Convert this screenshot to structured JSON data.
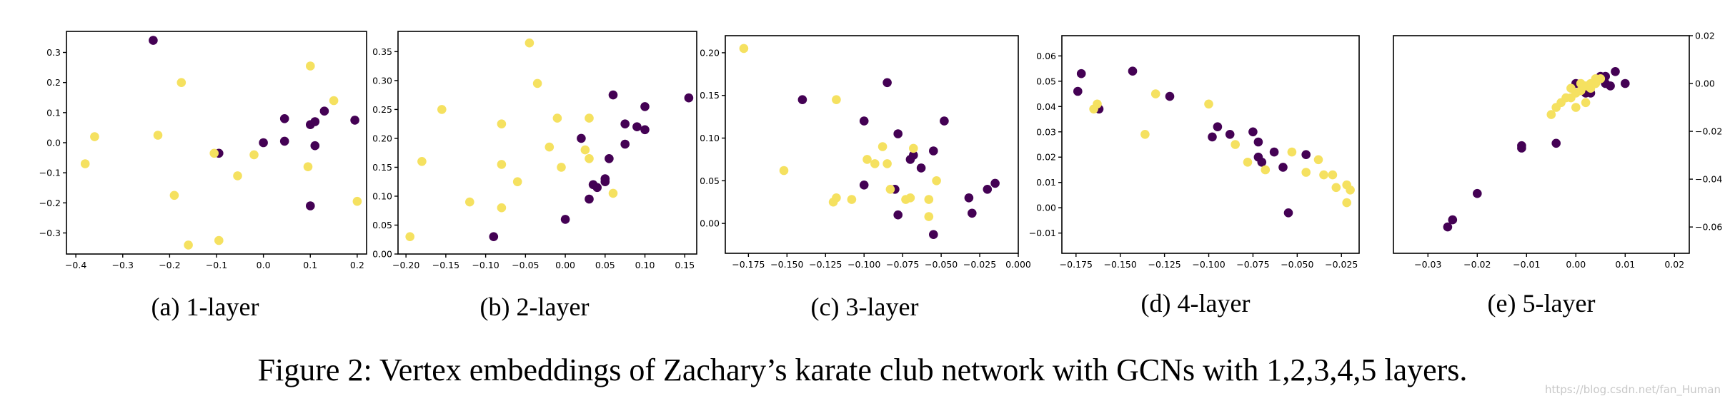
{
  "figure_caption": "Figure 2: Vertex embeddings of Zachary’s karate club network with GCNs with 1,2,3,4,5 layers.",
  "watermark": "https://blog.csdn.net/fan_Human",
  "colors": {
    "class_a": "#440154",
    "class_b": "#f5e160"
  },
  "chart_data": [
    {
      "type": "scatter",
      "caption": "(a) 1-layer",
      "xlim": [
        -0.42,
        0.22
      ],
      "ylim": [
        -0.37,
        0.37
      ],
      "xticks": [
        -0.4,
        -0.3,
        -0.2,
        -0.1,
        0.0,
        0.1,
        0.2
      ],
      "xtick_labels": [
        "−0.4",
        "−0.3",
        "−0.2",
        "−0.1",
        "0.0",
        "0.1",
        "0.2"
      ],
      "yticks": [
        -0.3,
        -0.2,
        -0.1,
        0.0,
        0.1,
        0.2,
        0.3
      ],
      "ytick_labels": [
        "−0.3",
        "−0.2",
        "−0.1",
        "0.0",
        "0.1",
        "0.2",
        "0.3"
      ],
      "yaxis_side": "left",
      "series": [
        {
          "color": "#440154",
          "points": [
            [
              -0.235,
              0.34
            ],
            [
              -0.095,
              -0.035
            ],
            [
              0.0,
              0.0
            ],
            [
              0.045,
              0.08
            ],
            [
              0.045,
              0.005
            ],
            [
              0.1,
              0.06
            ],
            [
              0.11,
              0.07
            ],
            [
              0.13,
              0.105
            ],
            [
              0.11,
              -0.01
            ],
            [
              0.195,
              0.075
            ],
            [
              0.1,
              -0.21
            ]
          ]
        },
        {
          "color": "#f5e160",
          "points": [
            [
              -0.38,
              -0.07
            ],
            [
              -0.36,
              0.02
            ],
            [
              -0.225,
              0.025
            ],
            [
              -0.175,
              0.2
            ],
            [
              -0.19,
              -0.175
            ],
            [
              -0.16,
              -0.34
            ],
            [
              -0.105,
              -0.035
            ],
            [
              -0.095,
              -0.325
            ],
            [
              -0.055,
              -0.11
            ],
            [
              -0.02,
              -0.04
            ],
            [
              0.095,
              -0.08
            ],
            [
              0.1,
              0.255
            ],
            [
              0.15,
              0.14
            ],
            [
              0.2,
              -0.195
            ]
          ]
        }
      ]
    },
    {
      "type": "scatter",
      "caption": "(b) 2-layer",
      "xlim": [
        -0.21,
        0.165
      ],
      "ylim": [
        0.0,
        0.385
      ],
      "xticks": [
        -0.2,
        -0.15,
        -0.1,
        -0.05,
        0.0,
        0.05,
        0.1,
        0.15
      ],
      "xtick_labels": [
        "−0.20",
        "−0.15",
        "−0.10",
        "−0.05",
        "0.00",
        "0.05",
        "0.10",
        "0.15"
      ],
      "yticks": [
        0.0,
        0.05,
        0.1,
        0.15,
        0.2,
        0.25,
        0.3,
        0.35
      ],
      "ytick_labels": [
        "0.00",
        "0.05",
        "0.10",
        "0.15",
        "0.20",
        "0.25",
        "0.30",
        "0.35"
      ],
      "yaxis_side": "left",
      "series": [
        {
          "color": "#440154",
          "points": [
            [
              -0.09,
              0.03
            ],
            [
              0.0,
              0.06
            ],
            [
              0.02,
              0.2
            ],
            [
              0.03,
              0.095
            ],
            [
              0.035,
              0.12
            ],
            [
              0.04,
              0.115
            ],
            [
              0.05,
              0.13
            ],
            [
              0.05,
              0.125
            ],
            [
              0.06,
              0.275
            ],
            [
              0.075,
              0.19
            ],
            [
              0.075,
              0.225
            ],
            [
              0.09,
              0.22
            ],
            [
              0.1,
              0.215
            ],
            [
              0.1,
              0.255
            ],
            [
              0.155,
              0.27
            ],
            [
              0.055,
              0.165
            ]
          ]
        },
        {
          "color": "#f5e160",
          "points": [
            [
              -0.195,
              0.03
            ],
            [
              -0.18,
              0.16
            ],
            [
              -0.155,
              0.25
            ],
            [
              -0.12,
              0.09
            ],
            [
              -0.08,
              0.225
            ],
            [
              -0.08,
              0.155
            ],
            [
              -0.08,
              0.08
            ],
            [
              -0.06,
              0.125
            ],
            [
              -0.045,
              0.365
            ],
            [
              -0.035,
              0.295
            ],
            [
              -0.02,
              0.185
            ],
            [
              -0.01,
              0.235
            ],
            [
              -0.005,
              0.15
            ],
            [
              0.025,
              0.18
            ],
            [
              0.03,
              0.235
            ],
            [
              0.03,
              0.165
            ],
            [
              0.06,
              0.105
            ]
          ]
        }
      ]
    },
    {
      "type": "scatter",
      "caption": "(c) 3-layer",
      "xlim": [
        -0.19,
        0.0
      ],
      "ylim": [
        -0.035,
        0.22
      ],
      "xticks": [
        -0.175,
        -0.15,
        -0.125,
        -0.1,
        -0.075,
        -0.05,
        -0.025,
        0.0
      ],
      "xtick_labels": [
        "−0.175",
        "−0.150",
        "−0.125",
        "−0.100",
        "−0.075",
        "−0.050",
        "−0.025",
        "0.000"
      ],
      "yticks": [
        0.0,
        0.05,
        0.1,
        0.15,
        0.2
      ],
      "ytick_labels": [
        "0.00",
        "0.05",
        "0.10",
        "0.15",
        "0.20"
      ],
      "yaxis_side": "left",
      "series": [
        {
          "color": "#440154",
          "points": [
            [
              -0.14,
              0.145
            ],
            [
              -0.1,
              0.12
            ],
            [
              -0.085,
              0.165
            ],
            [
              -0.08,
              0.04
            ],
            [
              -0.078,
              0.01
            ],
            [
              -0.078,
              0.105
            ],
            [
              -0.07,
              0.075
            ],
            [
              -0.068,
              0.08
            ],
            [
              -0.063,
              0.065
            ],
            [
              -0.055,
              0.085
            ],
            [
              -0.055,
              -0.013
            ],
            [
              -0.048,
              0.12
            ],
            [
              -0.032,
              0.03
            ],
            [
              -0.03,
              0.012
            ],
            [
              -0.02,
              0.04
            ],
            [
              -0.015,
              0.047
            ],
            [
              -0.1,
              0.045
            ]
          ]
        },
        {
          "color": "#f5e160",
          "points": [
            [
              -0.178,
              0.205
            ],
            [
              -0.152,
              0.062
            ],
            [
              -0.12,
              0.025
            ],
            [
              -0.118,
              0.03
            ],
            [
              -0.118,
              0.145
            ],
            [
              -0.108,
              0.028
            ],
            [
              -0.098,
              0.075
            ],
            [
              -0.093,
              0.07
            ],
            [
              -0.088,
              0.09
            ],
            [
              -0.085,
              0.07
            ],
            [
              -0.083,
              0.04
            ],
            [
              -0.073,
              0.028
            ],
            [
              -0.07,
              0.03
            ],
            [
              -0.068,
              0.088
            ],
            [
              -0.058,
              0.028
            ],
            [
              -0.058,
              0.008
            ],
            [
              -0.053,
              0.05
            ]
          ]
        }
      ]
    },
    {
      "type": "scatter",
      "caption": "(d) 4-layer",
      "xlim": [
        -0.183,
        -0.015
      ],
      "ylim": [
        -0.018,
        0.068
      ],
      "xticks": [
        -0.175,
        -0.15,
        -0.125,
        -0.1,
        -0.075,
        -0.05,
        -0.025
      ],
      "xtick_labels": [
        "−0.175",
        "−0.150",
        "−0.125",
        "−0.100",
        "−0.075",
        "−0.050",
        "−0.025"
      ],
      "yticks": [
        -0.01,
        0.0,
        0.01,
        0.02,
        0.03,
        0.04,
        0.05,
        0.06
      ],
      "ytick_labels": [
        "−0.01",
        "0.00",
        "0.01",
        "0.02",
        "0.03",
        "0.04",
        "0.05",
        "0.06"
      ],
      "yaxis_side": "left",
      "series": [
        {
          "color": "#440154",
          "points": [
            [
              -0.174,
              0.046
            ],
            [
              -0.172,
              0.053
            ],
            [
              -0.162,
              0.039
            ],
            [
              -0.143,
              0.054
            ],
            [
              -0.122,
              0.044
            ],
            [
              -0.098,
              0.028
            ],
            [
              -0.095,
              0.032
            ],
            [
              -0.088,
              0.029
            ],
            [
              -0.075,
              0.03
            ],
            [
              -0.072,
              0.026
            ],
            [
              -0.072,
              0.02
            ],
            [
              -0.07,
              0.018
            ],
            [
              -0.063,
              0.022
            ],
            [
              -0.058,
              0.016
            ],
            [
              -0.055,
              -0.002
            ],
            [
              -0.045,
              0.021
            ]
          ]
        },
        {
          "color": "#f5e160",
          "points": [
            [
              -0.165,
              0.039
            ],
            [
              -0.163,
              0.041
            ],
            [
              -0.136,
              0.029
            ],
            [
              -0.13,
              0.045
            ],
            [
              -0.1,
              0.041
            ],
            [
              -0.085,
              0.025
            ],
            [
              -0.078,
              0.018
            ],
            [
              -0.068,
              0.015
            ],
            [
              -0.053,
              0.022
            ],
            [
              -0.045,
              0.014
            ],
            [
              -0.038,
              0.019
            ],
            [
              -0.035,
              0.013
            ],
            [
              -0.03,
              0.013
            ],
            [
              -0.028,
              0.008
            ],
            [
              -0.022,
              0.009
            ],
            [
              -0.022,
              0.002
            ],
            [
              -0.02,
              0.007
            ]
          ]
        }
      ]
    },
    {
      "type": "scatter",
      "caption": "(e) 5-layer",
      "xlim": [
        -0.037,
        0.023
      ],
      "ylim": [
        -0.071,
        0.02
      ],
      "xticks": [
        -0.03,
        -0.02,
        -0.01,
        0.0,
        0.01,
        0.02
      ],
      "xtick_labels": [
        "−0.03",
        "−0.02",
        "−0.01",
        "0.00",
        "0.01",
        "0.02"
      ],
      "yticks": [
        -0.06,
        -0.04,
        -0.02,
        0.0,
        0.02
      ],
      "ytick_labels": [
        "−0.06",
        "−0.04",
        "−0.02",
        "0.00",
        "0.02"
      ],
      "yaxis_side": "right",
      "series": [
        {
          "color": "#440154",
          "points": [
            [
              -0.026,
              -0.06
            ],
            [
              -0.025,
              -0.057
            ],
            [
              -0.02,
              -0.046
            ],
            [
              -0.011,
              -0.026
            ],
            [
              -0.011,
              -0.027
            ],
            [
              -0.004,
              -0.025
            ],
            [
              0.0,
              0.0
            ],
            [
              0.002,
              -0.004
            ],
            [
              0.003,
              -0.004
            ],
            [
              0.005,
              0.003
            ],
            [
              0.006,
              0.003
            ],
            [
              0.006,
              0.0
            ],
            [
              0.007,
              -0.001
            ],
            [
              0.008,
              0.005
            ],
            [
              0.01,
              0.0
            ]
          ]
        },
        {
          "color": "#f5e160",
          "points": [
            [
              -0.005,
              -0.013
            ],
            [
              -0.004,
              -0.01
            ],
            [
              -0.003,
              -0.008
            ],
            [
              -0.002,
              -0.006
            ],
            [
              -0.001,
              -0.006
            ],
            [
              0.0,
              -0.004
            ],
            [
              0.0,
              -0.01
            ],
            [
              0.001,
              -0.003
            ],
            [
              0.002,
              -0.001
            ],
            [
              0.002,
              -0.008
            ],
            [
              0.003,
              0.0
            ],
            [
              0.004,
              0.002
            ],
            [
              0.004,
              0.0
            ],
            [
              0.005,
              0.002
            ],
            [
              0.001,
              0.0
            ],
            [
              -0.001,
              -0.002
            ],
            [
              0.003,
              -0.002
            ]
          ]
        }
      ]
    }
  ]
}
